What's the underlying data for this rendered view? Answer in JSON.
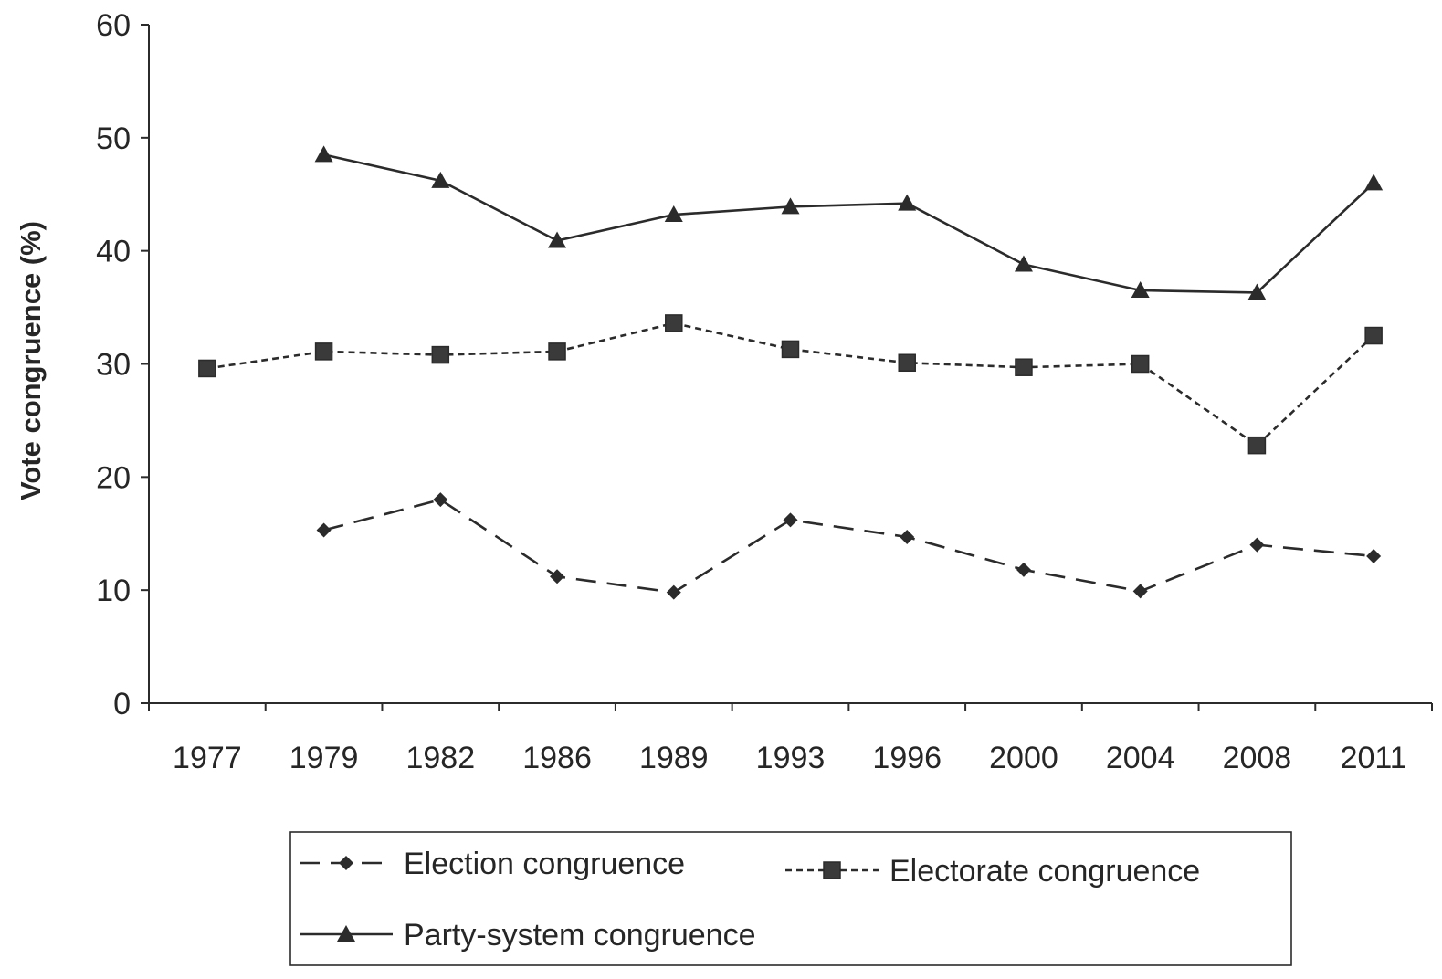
{
  "chart_data": {
    "type": "line",
    "title": "",
    "xlabel": "",
    "ylabel": "Vote congruence (%)",
    "categories": [
      "1977",
      "1979",
      "1982",
      "1986",
      "1989",
      "1993",
      "1996",
      "2000",
      "2004",
      "2008",
      "2011"
    ],
    "ylim": [
      0,
      60
    ],
    "yticks": [
      0,
      10,
      20,
      30,
      40,
      50,
      60
    ],
    "grid": false,
    "legend_position": "bottom",
    "series": [
      {
        "name": "Election congruence",
        "style": "dashed",
        "marker": "diamond",
        "color": "#2b2b2b",
        "values": [
          null,
          15.3,
          18.0,
          11.2,
          9.8,
          16.2,
          14.7,
          11.8,
          9.9,
          14.0,
          13.0
        ]
      },
      {
        "name": "Electorate congruence",
        "style": "dotted",
        "marker": "square",
        "color": "#2b2b2b",
        "values": [
          29.6,
          31.1,
          30.8,
          31.1,
          33.6,
          31.3,
          30.1,
          29.7,
          30.0,
          22.8,
          32.5
        ]
      },
      {
        "name": "Party-system congruence",
        "style": "solid",
        "marker": "triangle",
        "color": "#2b2b2b",
        "values": [
          null,
          48.5,
          46.2,
          40.9,
          43.2,
          43.9,
          44.2,
          38.8,
          36.5,
          36.3,
          46.0
        ]
      }
    ]
  }
}
